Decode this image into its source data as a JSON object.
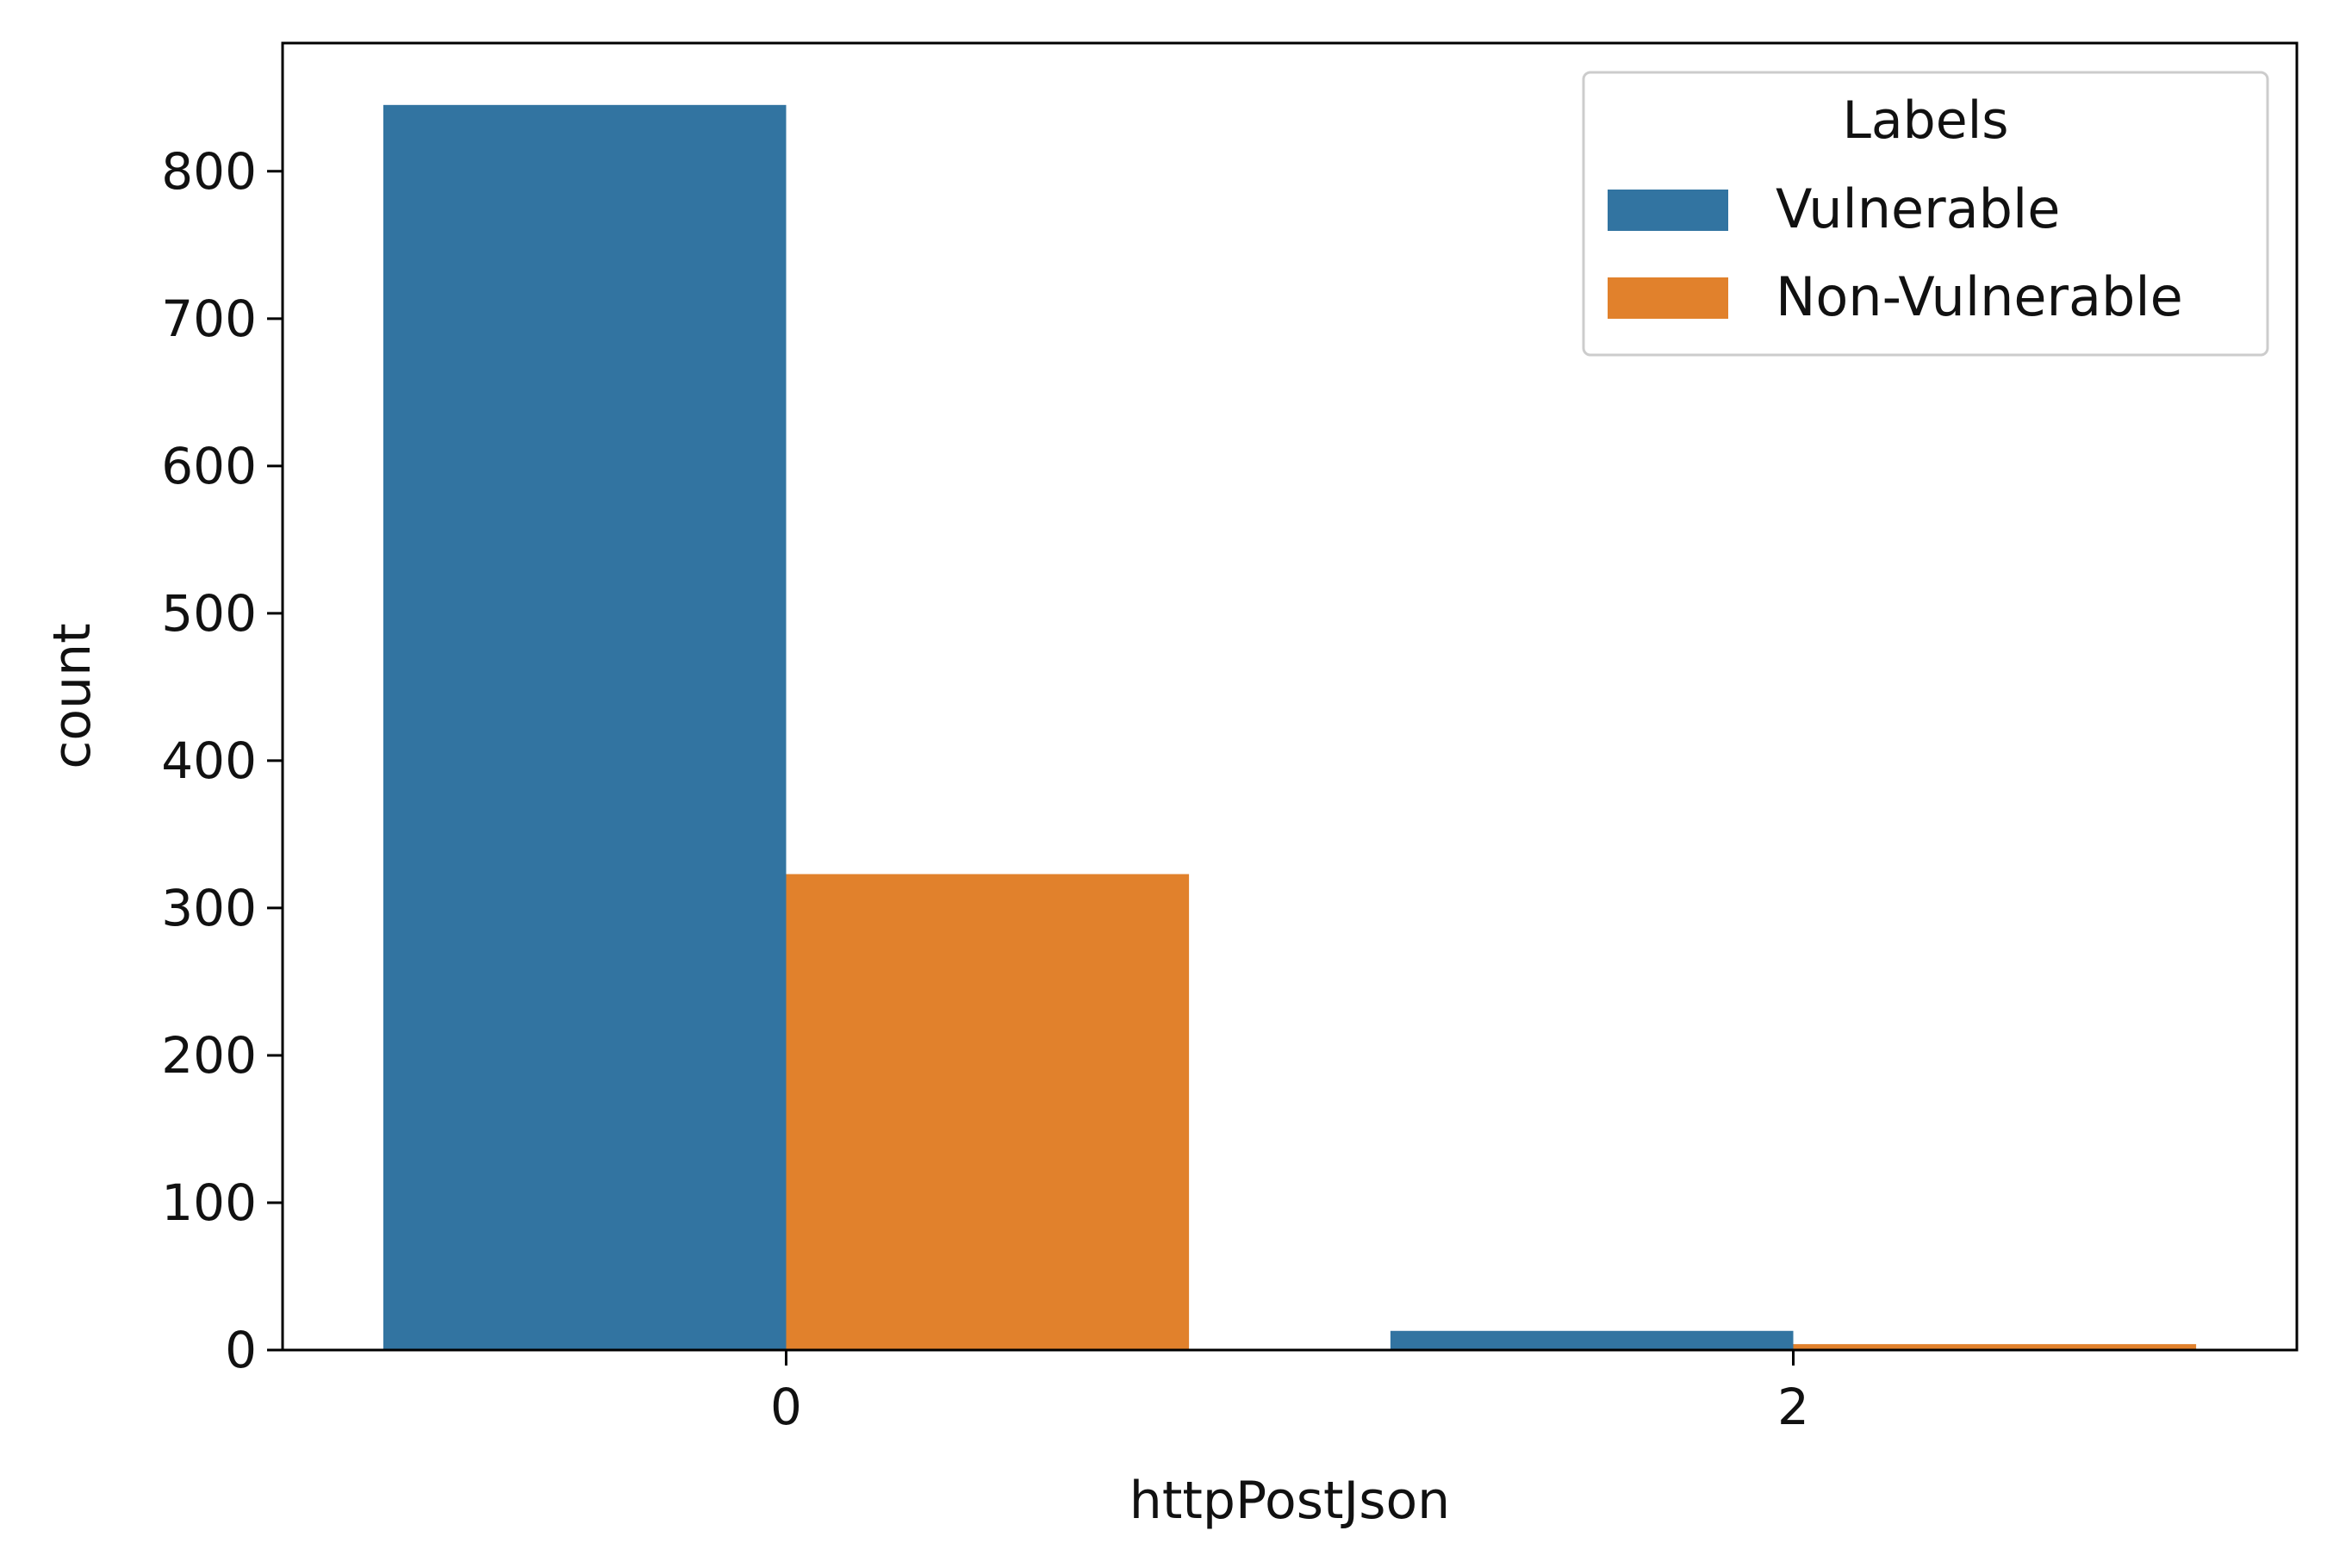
{
  "chart_data": {
    "type": "bar",
    "title": "",
    "xlabel": "httpPostJson",
    "ylabel": "count",
    "categories": [
      "0",
      "2"
    ],
    "series": [
      {
        "name": "Vulnerable",
        "color": "#3274a1",
        "values": [
          845,
          13
        ]
      },
      {
        "name": "Non-Vulnerable",
        "color": "#e1812c",
        "values": [
          323,
          4
        ]
      }
    ],
    "ylim": [
      0,
      887
    ],
    "yticks": [
      0,
      100,
      200,
      300,
      400,
      500,
      600,
      700,
      800
    ],
    "grid": false,
    "legend": {
      "title": "Labels",
      "placement": "top-right"
    }
  }
}
